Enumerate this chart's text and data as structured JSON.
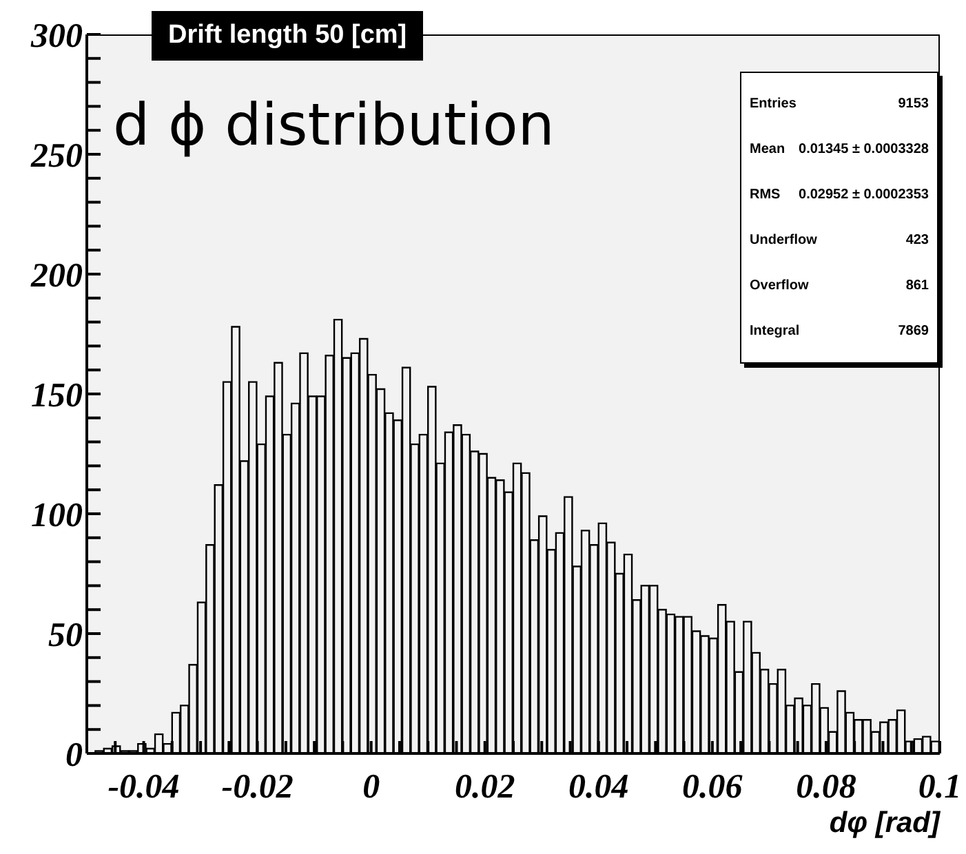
{
  "chart_data": {
    "type": "histogram",
    "title": "Drift length 50 [cm]",
    "xlabel": "dφ [rad]",
    "annotations": [
      "d ϕ distribution",
      "Entries 9153",
      "Mean 0.01345 ± 0.0003328",
      "RMS 0.02952 ± 0.0002353",
      "Underflow 423",
      "Overflow 861",
      "Integral 7869"
    ],
    "bins": [
      -0.05,
      -0.0485,
      -0.047,
      -0.0455,
      -0.044,
      -0.0425,
      -0.041,
      -0.0395,
      -0.038,
      -0.0365,
      -0.035,
      -0.0335,
      -0.032,
      -0.0305,
      -0.029,
      -0.0275,
      -0.026,
      -0.0245,
      -0.023,
      -0.0215,
      -0.02,
      -0.0185,
      -0.017,
      -0.0155,
      -0.014,
      -0.0125,
      -0.011,
      -0.0095,
      -0.008,
      -0.0065,
      -0.005,
      -0.0035,
      -0.002,
      -0.0005,
      0.001,
      0.0025,
      0.004,
      0.0055,
      0.007,
      0.0085,
      0.01,
      0.0115,
      0.013,
      0.0145,
      0.016,
      0.0175,
      0.019,
      0.0205,
      0.022,
      0.0235,
      0.025,
      0.0265,
      0.028,
      0.0295,
      0.031,
      0.0325,
      0.034,
      0.0355,
      0.037,
      0.0385,
      0.04,
      0.0415,
      0.043,
      0.0445,
      0.046,
      0.0475,
      0.049,
      0.0505,
      0.052,
      0.0535,
      0.055,
      0.0565,
      0.058,
      0.0595,
      0.061,
      0.0625,
      0.064,
      0.0655,
      0.067,
      0.0685,
      0.07,
      0.0715,
      0.073,
      0.0745,
      0.076,
      0.0775,
      0.079,
      0.0805,
      0.082,
      0.0835,
      0.085,
      0.0865,
      0.088,
      0.0895,
      0.091,
      0.0925,
      0.094,
      0.0955,
      0.097,
      0.0985,
      0.1
    ],
    "values": [
      0,
      1,
      2,
      3,
      1,
      1,
      4,
      2,
      8,
      4,
      17,
      20,
      37,
      63,
      87,
      112,
      155,
      178,
      122,
      155,
      129,
      149,
      163,
      133,
      146,
      167,
      149,
      149,
      166,
      181,
      165,
      167,
      173,
      158,
      152,
      142,
      139,
      161,
      129,
      133,
      153,
      121,
      134,
      137,
      133,
      126,
      125,
      115,
      114,
      109,
      121,
      117,
      89,
      99,
      85,
      92,
      107,
      78,
      93,
      87,
      96,
      88,
      75,
      83,
      64,
      70,
      70,
      60,
      58,
      57,
      57,
      51,
      49,
      48,
      62,
      55,
      34,
      55,
      42,
      35,
      29,
      35,
      20,
      23,
      20,
      29,
      19,
      9,
      26,
      17,
      14,
      14,
      9,
      13,
      14,
      18,
      5,
      6,
      7,
      5
    ],
    "color": "#000000",
    "xlim": [
      -0.05,
      0.1
    ],
    "xticks": [
      {
        "value": -0.045,
        "label": null
      },
      -0.04,
      {
        "value": -0.035,
        "label": null
      },
      {
        "value": -0.03,
        "label": null
      },
      {
        "value": -0.025,
        "label": null
      },
      -0.02,
      {
        "value": -0.015,
        "label": null
      },
      {
        "value": -0.01,
        "label": null
      },
      {
        "value": -0.005,
        "label": null
      },
      0,
      {
        "value": 0.005,
        "label": null
      },
      {
        "value": 0.01,
        "label": null
      },
      {
        "value": 0.015,
        "label": null
      },
      0.02,
      {
        "value": 0.025,
        "label": null
      },
      {
        "value": 0.03,
        "label": null
      },
      {
        "value": 0.035,
        "label": null
      },
      0.04,
      {
        "value": 0.045,
        "label": null
      },
      {
        "value": 0.05,
        "label": null
      },
      {
        "value": 0.055,
        "label": null
      },
      0.06,
      {
        "value": 0.065,
        "label": null
      },
      {
        "value": 0.07,
        "label": null
      },
      {
        "value": 0.075,
        "label": null
      },
      0.08,
      {
        "value": 0.085,
        "label": null
      },
      {
        "value": 0.09,
        "label": null
      },
      {
        "value": 0.095,
        "label": null
      },
      0.1
    ],
    "ylim": [
      0,
      300
    ],
    "yticks": [
      0,
      {
        "value": 10,
        "label": null
      },
      {
        "value": 20,
        "label": null
      },
      {
        "value": 30,
        "label": null
      },
      {
        "value": 40,
        "label": null
      },
      50,
      {
        "value": 60,
        "label": null
      },
      {
        "value": 70,
        "label": null
      },
      {
        "value": 80,
        "label": null
      },
      {
        "value": 90,
        "label": null
      },
      100,
      {
        "value": 110,
        "label": null
      },
      {
        "value": 120,
        "label": null
      },
      {
        "value": 130,
        "label": null
      },
      {
        "value": 140,
        "label": null
      },
      150,
      {
        "value": 160,
        "label": null
      },
      {
        "value": 170,
        "label": null
      },
      {
        "value": 180,
        "label": null
      },
      {
        "value": 190,
        "label": null
      },
      200,
      {
        "value": 210,
        "label": null
      },
      {
        "value": 220,
        "label": null
      },
      {
        "value": 230,
        "label": null
      },
      {
        "value": 240,
        "label": null
      },
      250,
      {
        "value": 260,
        "label": null
      },
      {
        "value": 270,
        "label": null
      },
      {
        "value": 280,
        "label": null
      },
      {
        "value": 290,
        "label": null
      },
      300
    ]
  }
}
